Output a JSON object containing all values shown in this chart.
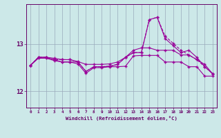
{
  "x": [
    0,
    1,
    2,
    3,
    4,
    5,
    6,
    7,
    8,
    9,
    10,
    11,
    12,
    13,
    14,
    15,
    16,
    17,
    18,
    19,
    20,
    21,
    22,
    23
  ],
  "line1": [
    12.55,
    12.7,
    12.7,
    12.65,
    12.62,
    12.62,
    12.58,
    12.38,
    12.5,
    12.5,
    12.52,
    12.52,
    12.53,
    12.75,
    12.76,
    12.76,
    12.76,
    12.62,
    12.62,
    12.62,
    12.52,
    12.52,
    12.32,
    12.32
  ],
  "line2": [
    12.55,
    12.72,
    12.72,
    12.7,
    12.67,
    12.67,
    12.63,
    12.57,
    12.57,
    12.57,
    12.58,
    12.62,
    12.72,
    12.87,
    12.92,
    12.92,
    12.87,
    12.87,
    12.87,
    12.77,
    12.77,
    12.67,
    12.57,
    12.37
  ],
  "line3": [
    12.55,
    12.72,
    12.72,
    12.67,
    12.67,
    12.67,
    12.62,
    12.42,
    12.52,
    12.52,
    12.53,
    12.57,
    12.72,
    12.82,
    12.82,
    13.52,
    13.57,
    13.17,
    13.02,
    12.87,
    12.77,
    12.67,
    12.52,
    12.37
  ],
  "line4": [
    12.55,
    12.72,
    12.72,
    12.67,
    12.62,
    12.62,
    12.62,
    12.42,
    12.52,
    12.52,
    12.53,
    12.57,
    12.72,
    12.82,
    12.82,
    13.52,
    13.57,
    13.12,
    12.97,
    12.82,
    12.87,
    12.72,
    12.52,
    12.37
  ],
  "line_color": "#990099",
  "bg_color": "#cce8e8",
  "grid_color": "#99aabb",
  "axis_color": "#660066",
  "xlabel": "Windchill (Refroidissement éolien,°C)",
  "yticks": [
    12,
    13
  ],
  "ylim": [
    11.65,
    13.85
  ],
  "xlim": [
    -0.5,
    23.5
  ]
}
